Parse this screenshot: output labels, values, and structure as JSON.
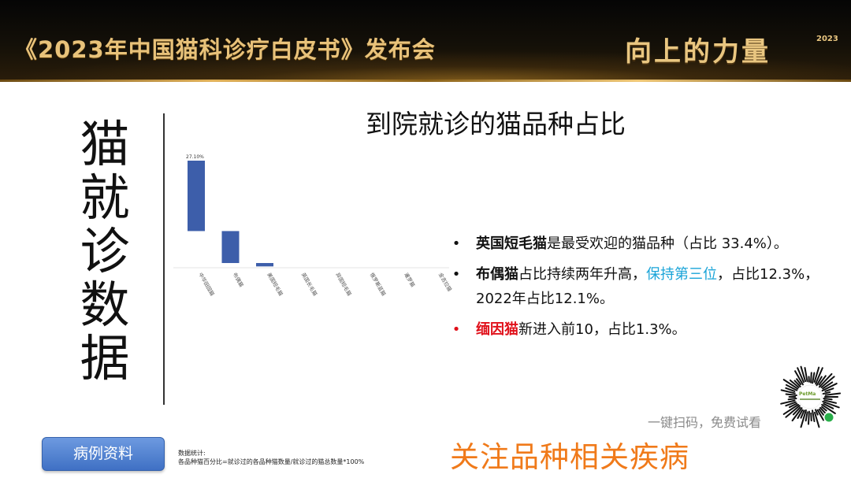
{
  "header": {
    "title": "《2023年中国猫科诊疗白皮书》发布会",
    "slogan": "向上的力量",
    "year": "2023"
  },
  "side_title": "猫就诊数据",
  "chart": {
    "title": "到院就诊的猫品种占比"
  },
  "chart_data": {
    "type": "bar",
    "categories": [
      "中华田园猫",
      "布偶猫",
      "美国短毛猫",
      "英国长毛猫",
      "异国短毛猫",
      "俄罗斯蓝猫",
      "暹罗猫",
      "金吉拉猫",
      "缅因猫"
    ],
    "values": [
      27.1,
      12.3,
      1.3,
      null,
      null,
      null,
      null,
      null,
      null
    ],
    "data_labels": [
      "27.10%"
    ],
    "color": "#3d5eaa"
  },
  "bullets": [
    {
      "marker": "•",
      "marker_color": "#111111",
      "strong": "英国短毛猫",
      "rest": "是最受欢迎的猫品种（占比 33.4%）。"
    },
    {
      "marker": "•",
      "marker_color": "#111111",
      "strong": "布偶猫",
      "mid": "占比持续两年升高，",
      "highlight": "保持第三位",
      "rest": "，占比12.3%，2022年占比12.1%。"
    },
    {
      "marker": "•",
      "marker_color": "#e0101a",
      "strong": "缅因猫",
      "rest": "新进入前10，占比1.3%。"
    }
  ],
  "case_button": "病例资料",
  "stats_note": {
    "line1": "数据统计:",
    "line2": "各品种猫百分比=就诊过的各品种猫数量/就诊过的猫总数量*100%"
  },
  "focus_title": "关注品种相关疾病",
  "qr": {
    "caption": "一键扫码，免费试看",
    "brand": "PetMa"
  },
  "colors": {
    "accent_gold": "#e8c27a",
    "bar_blue": "#3d5eaa",
    "red": "#e0101a",
    "highlight_blue": "#1aa4d8",
    "orange": "#f07a1a"
  }
}
